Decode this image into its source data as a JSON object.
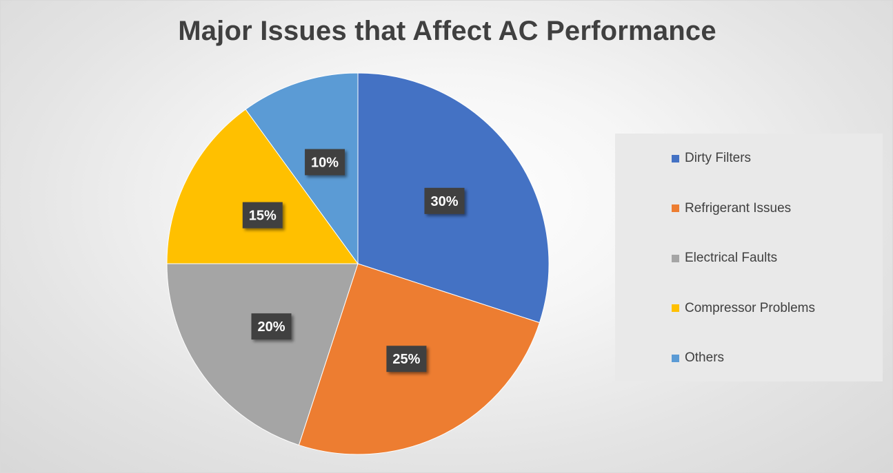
{
  "chart_data": {
    "type": "pie",
    "title": "Major Issues that Affect AC Performance",
    "categories": [
      "Dirty Filters",
      "Refrigerant Issues",
      "Electrical Faults",
      "Compressor Problems",
      "Others"
    ],
    "values": [
      30,
      25,
      20,
      15,
      10
    ],
    "data_labels": [
      "30%",
      "25%",
      "20%",
      "15%",
      "10%"
    ],
    "colors": [
      "#4472c4",
      "#ed7d31",
      "#a5a5a5",
      "#ffc000",
      "#5b9bd5"
    ],
    "legend_position": "right",
    "start_angle": "12 o'clock, clockwise"
  }
}
